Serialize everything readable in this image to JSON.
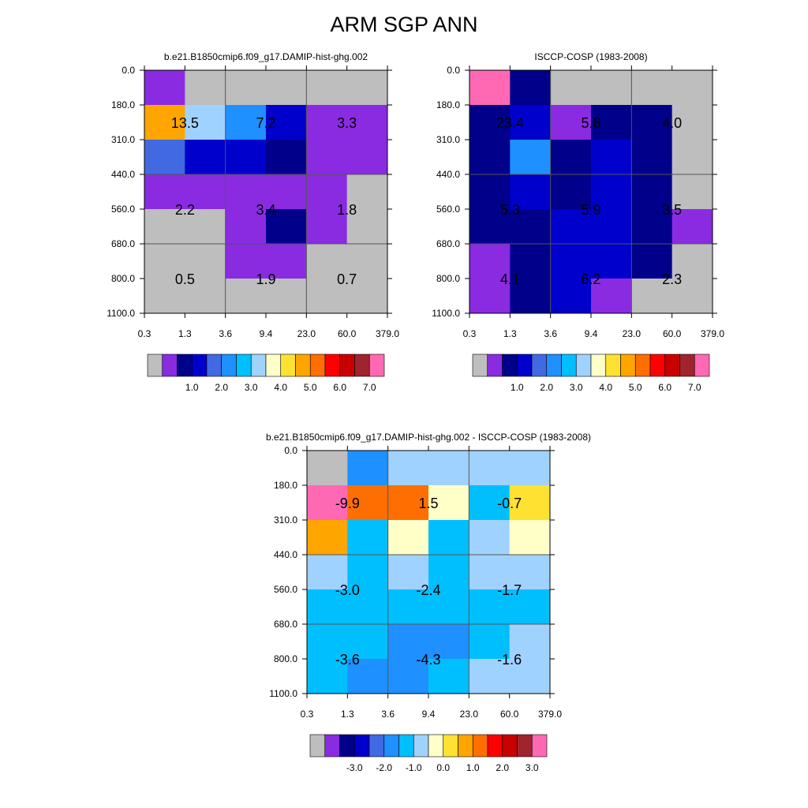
{
  "figure": {
    "title": "ARM SGP ANN"
  },
  "chart_data": [
    {
      "type": "heatmap",
      "title": "b.e21.B1850cmip6.f09_g17.DAMIP-hist-ghg.002",
      "x_ticks": [
        "0.3",
        "1.3",
        "3.6",
        "9.4",
        "23.0",
        "60.0",
        "379.0"
      ],
      "y_ticks": [
        "0.0",
        "180.0",
        "310.0",
        "440.0",
        "560.0",
        "680.0",
        "800.0",
        "1100.0"
      ],
      "cell_colors": [
        [
          "#8a2be2",
          "#bebebe",
          "#bebebe",
          "#bebebe",
          "#bebebe",
          "#bebebe"
        ],
        [
          "#ffa500",
          "#a0d2ff",
          "#1e90ff",
          "#0000cd",
          "#8a2be2",
          "#8a2be2"
        ],
        [
          "#4169e1",
          "#0000cd",
          "#0000cd",
          "#00008b",
          "#8a2be2",
          "#8a2be2"
        ],
        [
          "#8a2be2",
          "#8a2be2",
          "#8a2be2",
          "#8a2be2",
          "#8a2be2",
          "#bebebe"
        ],
        [
          "#bebebe",
          "#bebebe",
          "#8a2be2",
          "#00008b",
          "#8a2be2",
          "#bebebe"
        ],
        [
          "#bebebe",
          "#bebebe",
          "#8a2be2",
          "#8a2be2",
          "#bebebe",
          "#bebebe"
        ],
        [
          "#bebebe",
          "#bebebe",
          "#bebebe",
          "#bebebe",
          "#bebebe",
          "#bebebe"
        ]
      ],
      "block_labels": [
        [
          "13.5",
          "7.2",
          "3.3"
        ],
        [
          "2.2",
          "3.4",
          "1.8"
        ],
        [
          "0.5",
          "1.9",
          "0.7"
        ]
      ],
      "colorbar": {
        "colors": [
          "#bebebe",
          "#8a2be2",
          "#00008b",
          "#0000cd",
          "#4169e1",
          "#1e90ff",
          "#00bfff",
          "#a0d2ff",
          "#ffffc8",
          "#ffe132",
          "#ffa500",
          "#ff6e00",
          "#ff0000",
          "#c80000",
          "#a0232d",
          "#ff69b4"
        ],
        "labels": [
          "1.0",
          "2.0",
          "3.0",
          "4.0",
          "5.0",
          "6.0",
          "7.0"
        ]
      }
    },
    {
      "type": "heatmap",
      "title": "ISCCP-COSP (1983-2008)",
      "x_ticks": [
        "0.3",
        "1.3",
        "3.6",
        "9.4",
        "23.0",
        "60.0",
        "379.0"
      ],
      "y_ticks": [
        "0.0",
        "180.0",
        "310.0",
        "440.0",
        "560.0",
        "680.0",
        "800.0",
        "1100.0"
      ],
      "cell_colors": [
        [
          "#ff69b4",
          "#00008b",
          "#bebebe",
          "#bebebe",
          "#bebebe",
          "#bebebe"
        ],
        [
          "#00008b",
          "#0000cd",
          "#8a2be2",
          "#00008b",
          "#00008b",
          "#bebebe"
        ],
        [
          "#00008b",
          "#1e90ff",
          "#00008b",
          "#0000cd",
          "#00008b",
          "#bebebe"
        ],
        [
          "#00008b",
          "#0000cd",
          "#00008b",
          "#0000cd",
          "#00008b",
          "#bebebe"
        ],
        [
          "#00008b",
          "#00008b",
          "#0000cd",
          "#0000cd",
          "#00008b",
          "#8a2be2"
        ],
        [
          "#8a2be2",
          "#00008b",
          "#0000cd",
          "#0000cd",
          "#00008b",
          "#bebebe"
        ],
        [
          "#8a2be2",
          "#00008b",
          "#0000cd",
          "#8a2be2",
          "#bebebe",
          "#bebebe"
        ]
      ],
      "block_labels": [
        [
          "23.4",
          "5.8",
          "4.0"
        ],
        [
          "5.3",
          "5.9",
          "3.5"
        ],
        [
          "4.1",
          "6.2",
          "2.3"
        ]
      ],
      "colorbar": {
        "colors": [
          "#bebebe",
          "#8a2be2",
          "#00008b",
          "#0000cd",
          "#4169e1",
          "#1e90ff",
          "#00bfff",
          "#a0d2ff",
          "#ffffc8",
          "#ffe132",
          "#ffa500",
          "#ff6e00",
          "#ff0000",
          "#c80000",
          "#a0232d",
          "#ff69b4"
        ],
        "labels": [
          "1.0",
          "2.0",
          "3.0",
          "4.0",
          "5.0",
          "6.0",
          "7.0"
        ]
      }
    },
    {
      "type": "heatmap",
      "title": "b.e21.B1850cmip6.f09_g17.DAMIP-hist-ghg.002 - ISCCP-COSP (1983-2008)",
      "x_ticks": [
        "0.3",
        "1.3",
        "3.6",
        "9.4",
        "23.0",
        "60.0",
        "379.0"
      ],
      "y_ticks": [
        "0.0",
        "180.0",
        "310.0",
        "440.0",
        "560.0",
        "680.0",
        "800.0",
        "1100.0"
      ],
      "cell_colors": [
        [
          "#bebebe",
          "#1e90ff",
          "#a0d2ff",
          "#a0d2ff",
          "#a0d2ff",
          "#a0d2ff"
        ],
        [
          "#ff69b4",
          "#ff6e00",
          "#ff6e00",
          "#ffffc8",
          "#00bfff",
          "#ffe132"
        ],
        [
          "#ffa500",
          "#00bfff",
          "#ffffc8",
          "#00bfff",
          "#a0d2ff",
          "#ffffc8"
        ],
        [
          "#a0d2ff",
          "#00bfff",
          "#a0d2ff",
          "#00bfff",
          "#a0d2ff",
          "#a0d2ff"
        ],
        [
          "#00bfff",
          "#00bfff",
          "#00bfff",
          "#00bfff",
          "#00bfff",
          "#00bfff"
        ],
        [
          "#00bfff",
          "#00bfff",
          "#1e90ff",
          "#1e90ff",
          "#00bfff",
          "#a0d2ff"
        ],
        [
          "#00bfff",
          "#1e90ff",
          "#1e90ff",
          "#00bfff",
          "#a0d2ff",
          "#a0d2ff"
        ]
      ],
      "block_labels": [
        [
          "-9.9",
          "1.5",
          "-0.7"
        ],
        [
          "-3.0",
          "-2.4",
          "-1.7"
        ],
        [
          "-3.6",
          "-4.3",
          "-1.6"
        ]
      ],
      "colorbar": {
        "colors": [
          "#bebebe",
          "#8a2be2",
          "#00008b",
          "#0000cd",
          "#4169e1",
          "#1e90ff",
          "#00bfff",
          "#a0d2ff",
          "#ffffc8",
          "#ffe132",
          "#ffa500",
          "#ff6e00",
          "#ff0000",
          "#c80000",
          "#a0232d",
          "#ff69b4"
        ],
        "labels": [
          "-3.0",
          "-2.0",
          "-1.0",
          "0.0",
          "1.0",
          "2.0",
          "3.0"
        ]
      }
    }
  ]
}
